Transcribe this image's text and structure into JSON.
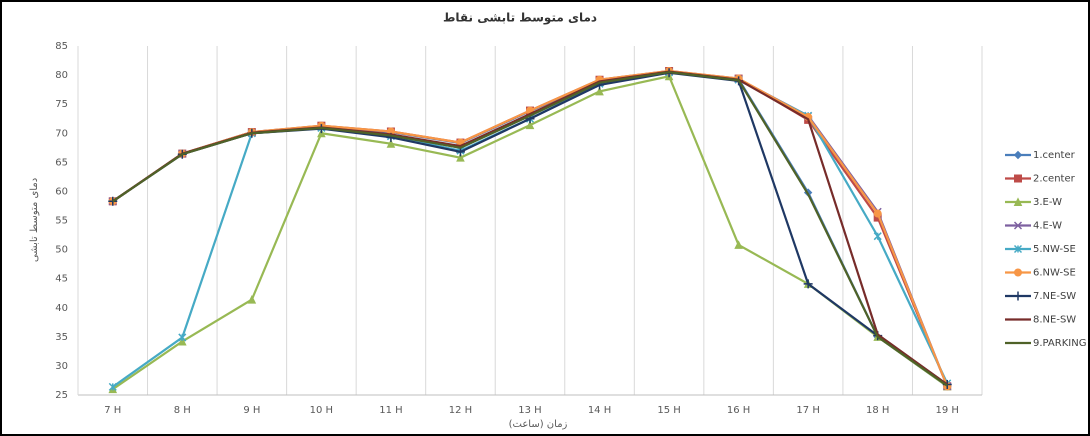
{
  "chart_data": {
    "type": "line",
    "title": "دمای متوسط تابشی نقاط",
    "y_label": "دمای متوسط تابشی",
    "x_label": "زمان (ساعت)",
    "categories": [
      "7 H",
      "8 H",
      "9 H",
      "10 H",
      "11 H",
      "12 H",
      "13 H",
      "14 H",
      "15 H",
      "16 H",
      "17 H",
      "18 H",
      "19 H"
    ],
    "ylim": [
      25,
      85
    ],
    "yticks": [
      25,
      30,
      35,
      40,
      45,
      50,
      55,
      60,
      65,
      70,
      75,
      80,
      85
    ],
    "grid": true,
    "legend": "right",
    "series": [
      {
        "name": "1.center",
        "color": "#4a7ebb",
        "marker": "diamond",
        "values": [
          58.3,
          66.5,
          70.2,
          71.2,
          70.2,
          68.3,
          73.8,
          79.1,
          80.6,
          79.3,
          59.8,
          35,
          26.5
        ]
      },
      {
        "name": "2.center",
        "color": "#be4b48",
        "marker": "square",
        "values": [
          58.3,
          66.5,
          70.2,
          71.3,
          70.3,
          68.4,
          73.9,
          79.2,
          80.7,
          79.4,
          72.3,
          55.5,
          26.5
        ]
      },
      {
        "name": "3.E-W",
        "color": "#98b954",
        "marker": "triangle",
        "values": [
          26,
          34.2,
          41.4,
          70,
          68.2,
          65.8,
          71.4,
          77.2,
          79.8,
          50.8,
          44.1,
          35,
          26.5
        ]
      },
      {
        "name": "4.E-W",
        "color": "#7d60a0",
        "marker": "x",
        "values": [
          58.3,
          66.5,
          70,
          71,
          69.8,
          67.5,
          73.2,
          78.8,
          80.5,
          79.3,
          73,
          56.5,
          26.5
        ]
      },
      {
        "name": "5.NW-SE",
        "color": "#46aac5",
        "marker": "star",
        "values": [
          26.4,
          34.9,
          70,
          70.9,
          69.5,
          67,
          72.5,
          78.5,
          80.5,
          79.2,
          73,
          52.3,
          27
        ]
      },
      {
        "name": "6.NW-SE",
        "color": "#f79646",
        "marker": "circle",
        "values": [
          58.3,
          66.5,
          70.2,
          71.3,
          70.3,
          68.4,
          73.9,
          79.2,
          80.7,
          79.4,
          72.8,
          56.2,
          26.5
        ]
      },
      {
        "name": "7.NE-SW",
        "color": "#1f3864",
        "marker": "plus",
        "values": [
          58.3,
          66.4,
          70,
          70.8,
          69.3,
          66.8,
          72.5,
          78.3,
          80.4,
          79,
          44.1,
          35.2,
          26.8
        ]
      },
      {
        "name": "8.NE-SW",
        "color": "#772c2a",
        "marker": "none",
        "values": [
          58.3,
          66.5,
          70.1,
          71,
          69.8,
          67.8,
          73.3,
          78.9,
          80.6,
          79.2,
          72.4,
          35.4,
          26.8
        ]
      },
      {
        "name": "9.PARKING",
        "color": "#4f6228",
        "marker": "none",
        "values": [
          58.3,
          66.4,
          70,
          70.9,
          69.6,
          67.5,
          73,
          78.7,
          80.5,
          79.1,
          59.5,
          35,
          26.6
        ]
      }
    ]
  }
}
